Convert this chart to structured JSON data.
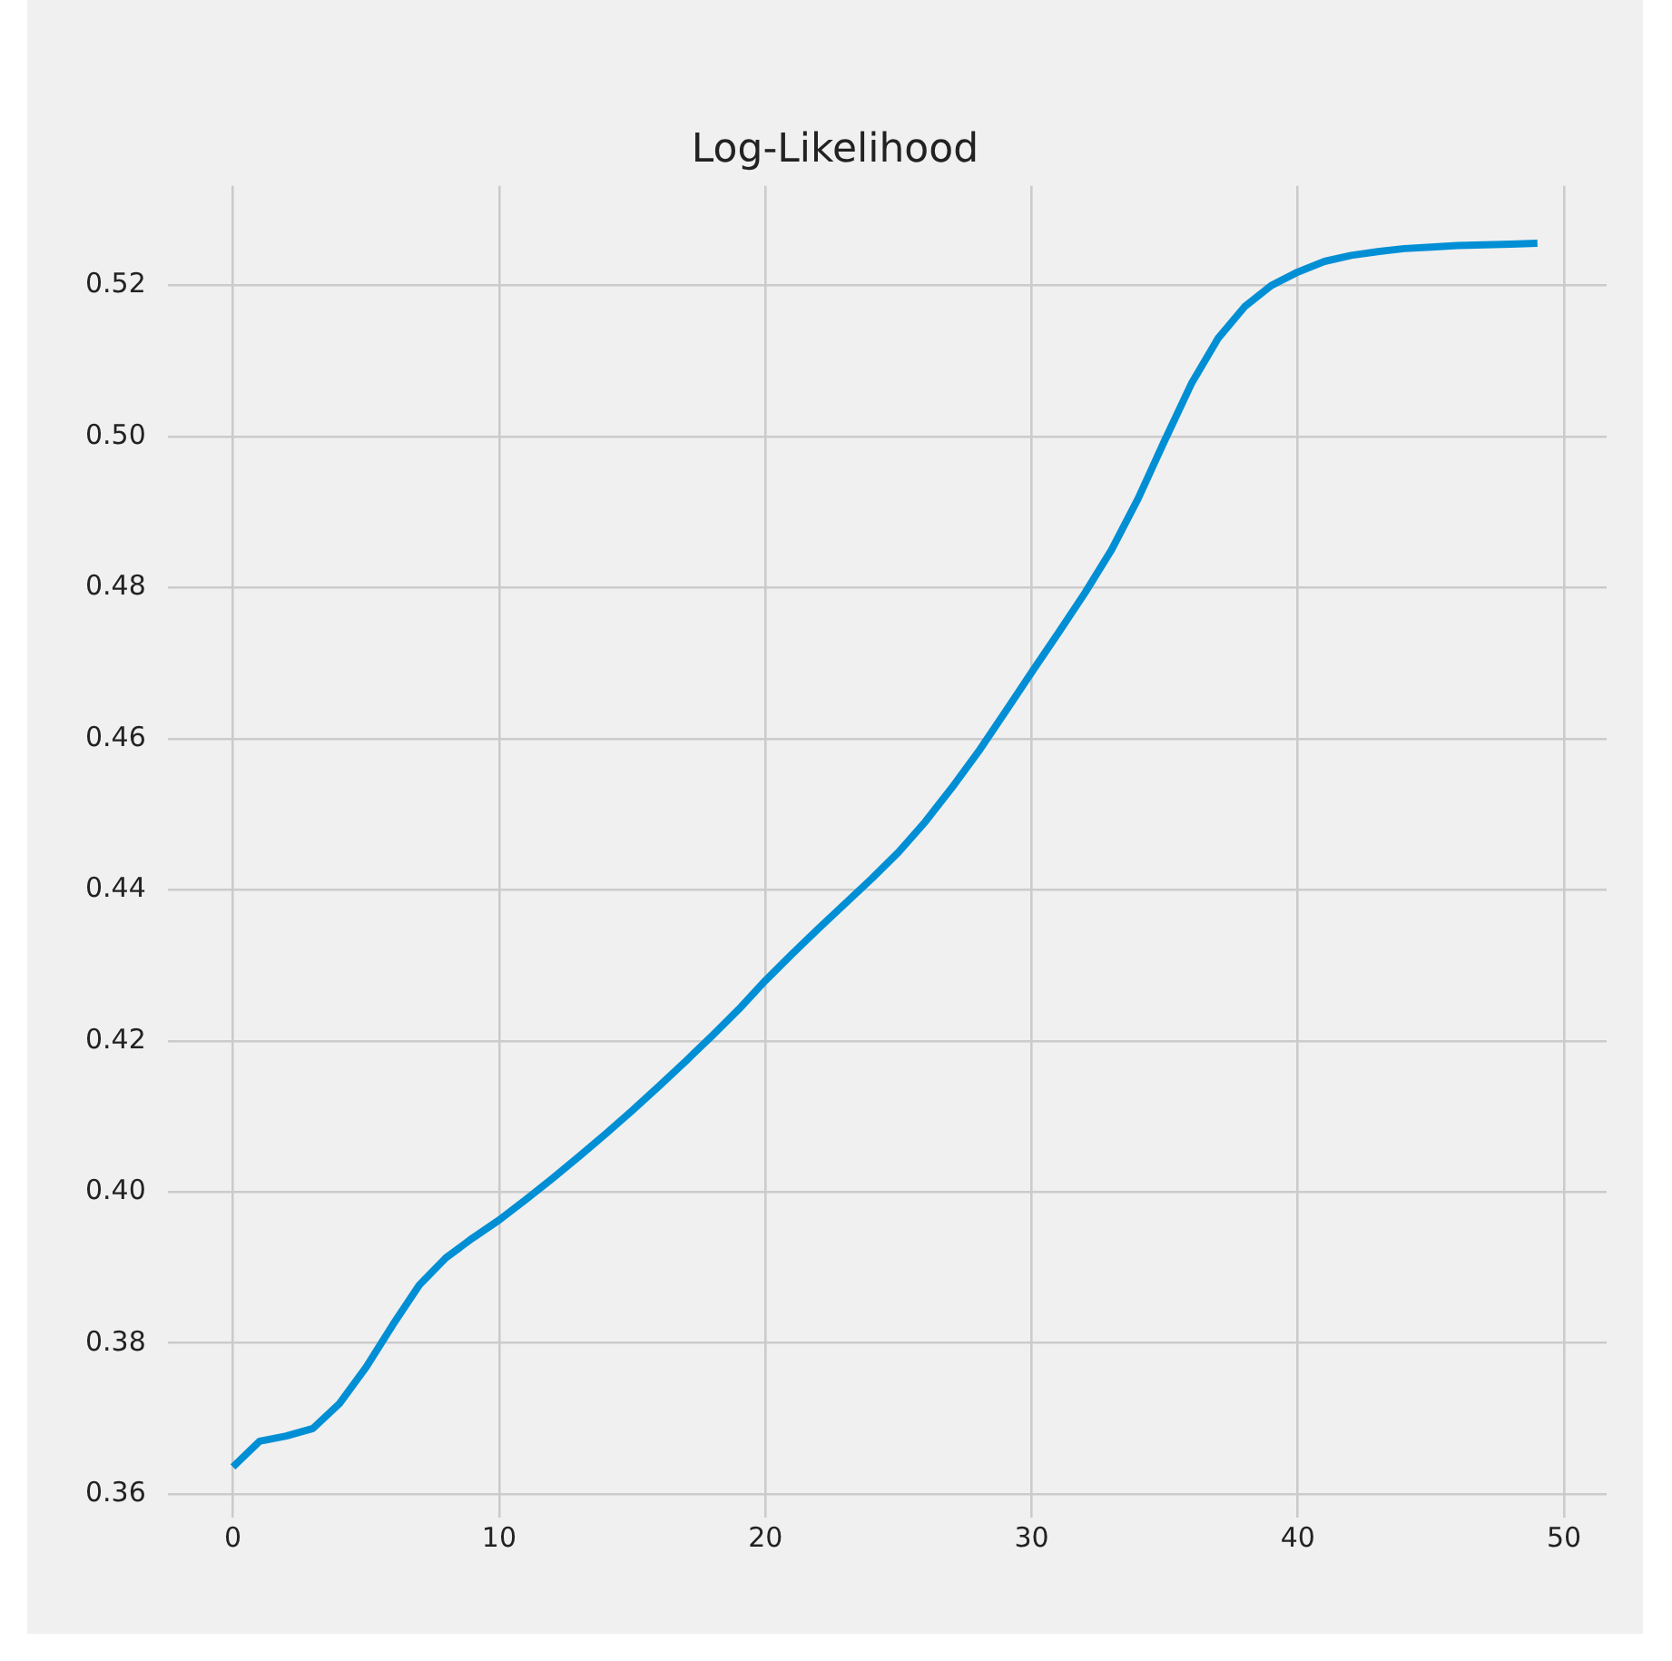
{
  "chart_data": {
    "type": "line",
    "title": "Log-Likelihood",
    "x": [
      0,
      1,
      2,
      3,
      4,
      5,
      6,
      7,
      8,
      9,
      10,
      11,
      12,
      13,
      14,
      15,
      16,
      17,
      18,
      19,
      20,
      21,
      22,
      23,
      24,
      25,
      26,
      27,
      28,
      29,
      30,
      31,
      32,
      33,
      34,
      35,
      36,
      37,
      38,
      39,
      40,
      41,
      42,
      43,
      44,
      45,
      46,
      47,
      48,
      49
    ],
    "series": [
      {
        "color": "#008fd5",
        "values": [
          0.3636,
          0.367,
          0.3677,
          0.3687,
          0.372,
          0.3768,
          0.3824,
          0.3877,
          0.3913,
          0.3939,
          0.3963,
          0.399,
          0.4018,
          0.4047,
          0.4077,
          0.4108,
          0.414,
          0.4173,
          0.4207,
          0.4242,
          0.428,
          0.4315,
          0.4349,
          0.4382,
          0.4415,
          0.445,
          0.449,
          0.4535,
          0.4583,
          0.4635,
          0.4688,
          0.474,
          0.4793,
          0.485,
          0.4918,
          0.4995,
          0.507,
          0.513,
          0.5172,
          0.52,
          0.5218,
          0.5232,
          0.524,
          0.5245,
          0.5249,
          0.5251,
          0.5253,
          0.5254,
          0.5255,
          0.5256
        ]
      }
    ],
    "xlim": [
      -2.45,
      51.6
    ],
    "xticks": [
      0,
      10,
      20,
      30,
      40,
      50
    ],
    "ylim": [
      0.3569,
      0.5332
    ],
    "yticks": [
      {
        "value": 0.36,
        "label": "0.36"
      },
      {
        "value": 0.38,
        "label": "0.38"
      },
      {
        "value": 0.4,
        "label": "0.40"
      },
      {
        "value": 0.42,
        "label": "0.42"
      },
      {
        "value": 0.44,
        "label": "0.44"
      },
      {
        "value": 0.46,
        "label": "0.46"
      },
      {
        "value": 0.48,
        "label": "0.48"
      },
      {
        "value": 0.5,
        "label": "0.50"
      },
      {
        "value": 0.52,
        "label": "0.52"
      }
    ],
    "grid": true,
    "legend": false,
    "marker": "none",
    "line_style": "solid"
  }
}
